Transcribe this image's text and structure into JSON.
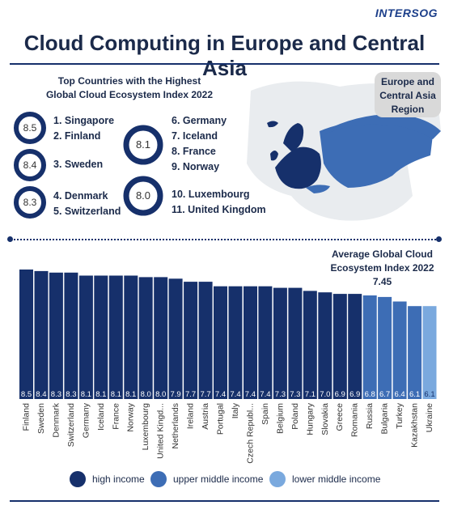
{
  "brand": "INTERSOG",
  "title": "Cloud Computing in Europe and Central Asia",
  "top_heading": [
    "Top Countries with the Highest",
    "Global Cloud Ecosystem Index 2022"
  ],
  "region_badge": [
    "Europe and",
    "Central Asia",
    "Region"
  ],
  "rank_groups": [
    {
      "score": "8.5",
      "items": [
        "1. Singapore",
        "2. Finland"
      ]
    },
    {
      "score": "8.4",
      "items": [
        "3. Sweden"
      ]
    },
    {
      "score": "8.3",
      "items": [
        "4. Denmark",
        "5. Switzerland"
      ]
    },
    {
      "score": "8.1",
      "items": [
        "6. Germany",
        "7. Iceland",
        "8. France",
        "9. Norway"
      ]
    },
    {
      "score": "8.0",
      "items": [
        "10. Luxembourg",
        "11. United Kingdom"
      ]
    }
  ],
  "avg_label": [
    "Average Global Cloud",
    "Ecosystem Index 2022",
    "7.45"
  ],
  "colors": {
    "high_income": "#16306b",
    "upper_middle_income": "#3d6db5",
    "lower_middle_income": "#7aa9de",
    "map_other": "#e9ecef",
    "map_region": "#3d6db5",
    "map_dark": "#16306b"
  },
  "legend": [
    {
      "label": "high income",
      "color": "#16306b"
    },
    {
      "label": "upper middle income",
      "color": "#3d6db5"
    },
    {
      "label": "lower middle income",
      "color": "#7aa9de"
    }
  ],
  "chart_data": {
    "type": "bar",
    "categories": [
      "Finland",
      "Sweden",
      "Denmark",
      "Switzerland",
      "Germany",
      "Iceland",
      "France",
      "Norway",
      "Luxembourg",
      "United Kingd...",
      "Netherlands",
      "Ireland",
      "Austria",
      "Portugal",
      "Italy",
      "Czech Republ...",
      "Spain",
      "Belgium",
      "Poland",
      "Hungary",
      "Slovakia",
      "Greece",
      "Romania",
      "Russia",
      "Bulgaria",
      "Turkey",
      "Kazakhstan",
      "Ukraine"
    ],
    "values": [
      8.5,
      8.4,
      8.3,
      8.3,
      8.1,
      8.1,
      8.1,
      8.1,
      8.0,
      8.0,
      7.9,
      7.7,
      7.7,
      7.4,
      7.4,
      7.4,
      7.4,
      7.3,
      7.3,
      7.1,
      7.0,
      6.9,
      6.9,
      6.8,
      6.7,
      6.4,
      6.1,
      6.1
    ],
    "value_labels": [
      "8.5",
      "8.4",
      "8.3",
      "8.3",
      "8.1",
      "8.1",
      "8.1",
      "8.1",
      "8.0",
      "8.0",
      "7.9",
      "7.7",
      "7.7",
      "7.4",
      "7.4",
      "7.4",
      "7.4",
      "7.3",
      "7.3",
      "7.1",
      "7.0",
      "6.9",
      "6.9",
      "6.8",
      "6.7",
      "6.4",
      "6.1",
      "6.1"
    ],
    "income_group": [
      "high",
      "high",
      "high",
      "high",
      "high",
      "high",
      "high",
      "high",
      "high",
      "high",
      "high",
      "high",
      "high",
      "high",
      "high",
      "high",
      "high",
      "high",
      "high",
      "high",
      "high",
      "high",
      "high",
      "upper_middle",
      "upper_middle",
      "upper_middle",
      "upper_middle",
      "lower_middle"
    ],
    "average": 7.45,
    "ylim": [
      0,
      8.5
    ],
    "grid": false,
    "legend_position": "bottom"
  }
}
